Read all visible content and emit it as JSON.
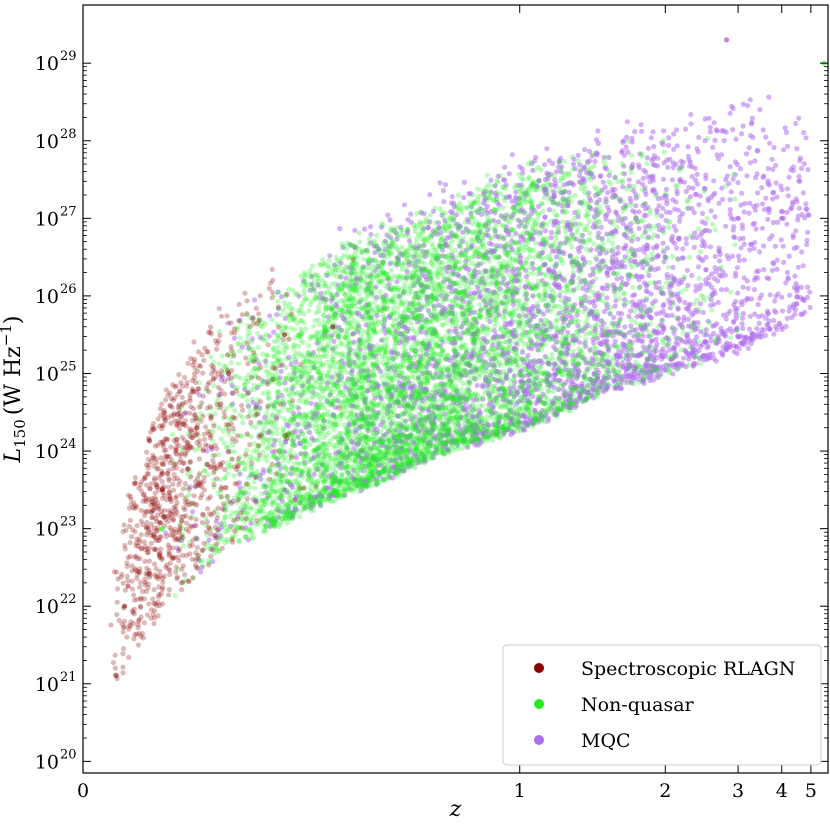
{
  "chart_data": {
    "type": "scatter",
    "xlabel": "z",
    "ylabel_main": "L",
    "ylabel_sub": "150",
    "ylabel_unit": "(W Hz",
    "ylabel_unit_sup": "−1",
    "ylabel_close": ")",
    "x_scale": "reciprocal (ticks at z = 0, 1, 2, 3, 4, 5)",
    "y_scale": "log",
    "xlim": [
      0,
      5.8
    ],
    "ylim_log10": [
      19.85,
      29.75
    ],
    "x_ticks": [
      0,
      1,
      2,
      3,
      4,
      5
    ],
    "x_tick_labels": [
      "0",
      "1",
      "2",
      "3",
      "4",
      "5"
    ],
    "y_ticks_log10": [
      20,
      21,
      22,
      23,
      24,
      25,
      26,
      27,
      28,
      29
    ],
    "y_tick_labels": [
      "10",
      "10",
      "10",
      "10",
      "10",
      "10",
      "10",
      "10",
      "10",
      "10"
    ],
    "y_tick_exponents": [
      "20",
      "21",
      "22",
      "23",
      "24",
      "25",
      "26",
      "27",
      "28",
      "29"
    ],
    "grid": false,
    "legend_position": "bottom-right",
    "series": [
      {
        "name": "Spectroscopic RLAGN",
        "color": "#8b0000",
        "z_range": [
          0.02,
          0.45
        ],
        "z_peak": 0.12,
        "log_L_at_median": 24.6,
        "n_points_rendered": 900,
        "approx_points": [
          [
            0.05,
            22.0
          ],
          [
            0.1,
            23.5
          ],
          [
            0.15,
            24.3
          ],
          [
            0.2,
            25.0
          ],
          [
            0.3,
            25.5
          ],
          [
            0.4,
            25.6
          ]
        ]
      },
      {
        "name": "Non-quasar",
        "color": "#22ee22",
        "z_range": [
          0.02,
          5.7
        ],
        "z_peak": 0.6,
        "log_L_at_median": 24.8,
        "n_points_rendered": 6000,
        "approx_points": [
          [
            0.1,
            23.0
          ],
          [
            0.3,
            24.2
          ],
          [
            0.5,
            24.8
          ],
          [
            0.7,
            25.3
          ],
          [
            1.0,
            25.0
          ],
          [
            1.5,
            25.5
          ],
          [
            5.6,
            29.0
          ]
        ]
      },
      {
        "name": "MQC",
        "color": "#b070ee",
        "z_range": [
          0.03,
          5.0
        ],
        "z_peak": 1.2,
        "log_L_at_median": 25.5,
        "n_points_rendered": 3400,
        "approx_points": [
          [
            0.3,
            23.5
          ],
          [
            0.7,
            24.2
          ],
          [
            1.5,
            26.3
          ],
          [
            2.0,
            26.5
          ],
          [
            3.0,
            27.0
          ],
          [
            4.0,
            27.0
          ],
          [
            2.8,
            29.3
          ]
        ]
      }
    ],
    "lower_envelope_log10": [
      [
        0.02,
        20.6
      ],
      [
        0.05,
        21.2
      ],
      [
        0.1,
        22.0
      ],
      [
        0.2,
        22.8
      ],
      [
        0.4,
        23.4
      ],
      [
        0.7,
        24.0
      ],
      [
        1.0,
        24.3
      ],
      [
        1.5,
        24.8
      ],
      [
        2.0,
        25.0
      ],
      [
        3.0,
        25.3
      ],
      [
        4.0,
        25.6
      ],
      [
        5.0,
        25.8
      ]
    ],
    "upper_envelope_log10": [
      [
        0.02,
        21.8
      ],
      [
        0.05,
        23.4
      ],
      [
        0.1,
        25.0
      ],
      [
        0.2,
        26.2
      ],
      [
        0.4,
        27.3
      ],
      [
        0.7,
        27.9
      ],
      [
        1.0,
        28.4
      ],
      [
        2.0,
        28.7
      ],
      [
        3.0,
        29.0
      ],
      [
        5.0,
        29.0
      ]
    ]
  }
}
